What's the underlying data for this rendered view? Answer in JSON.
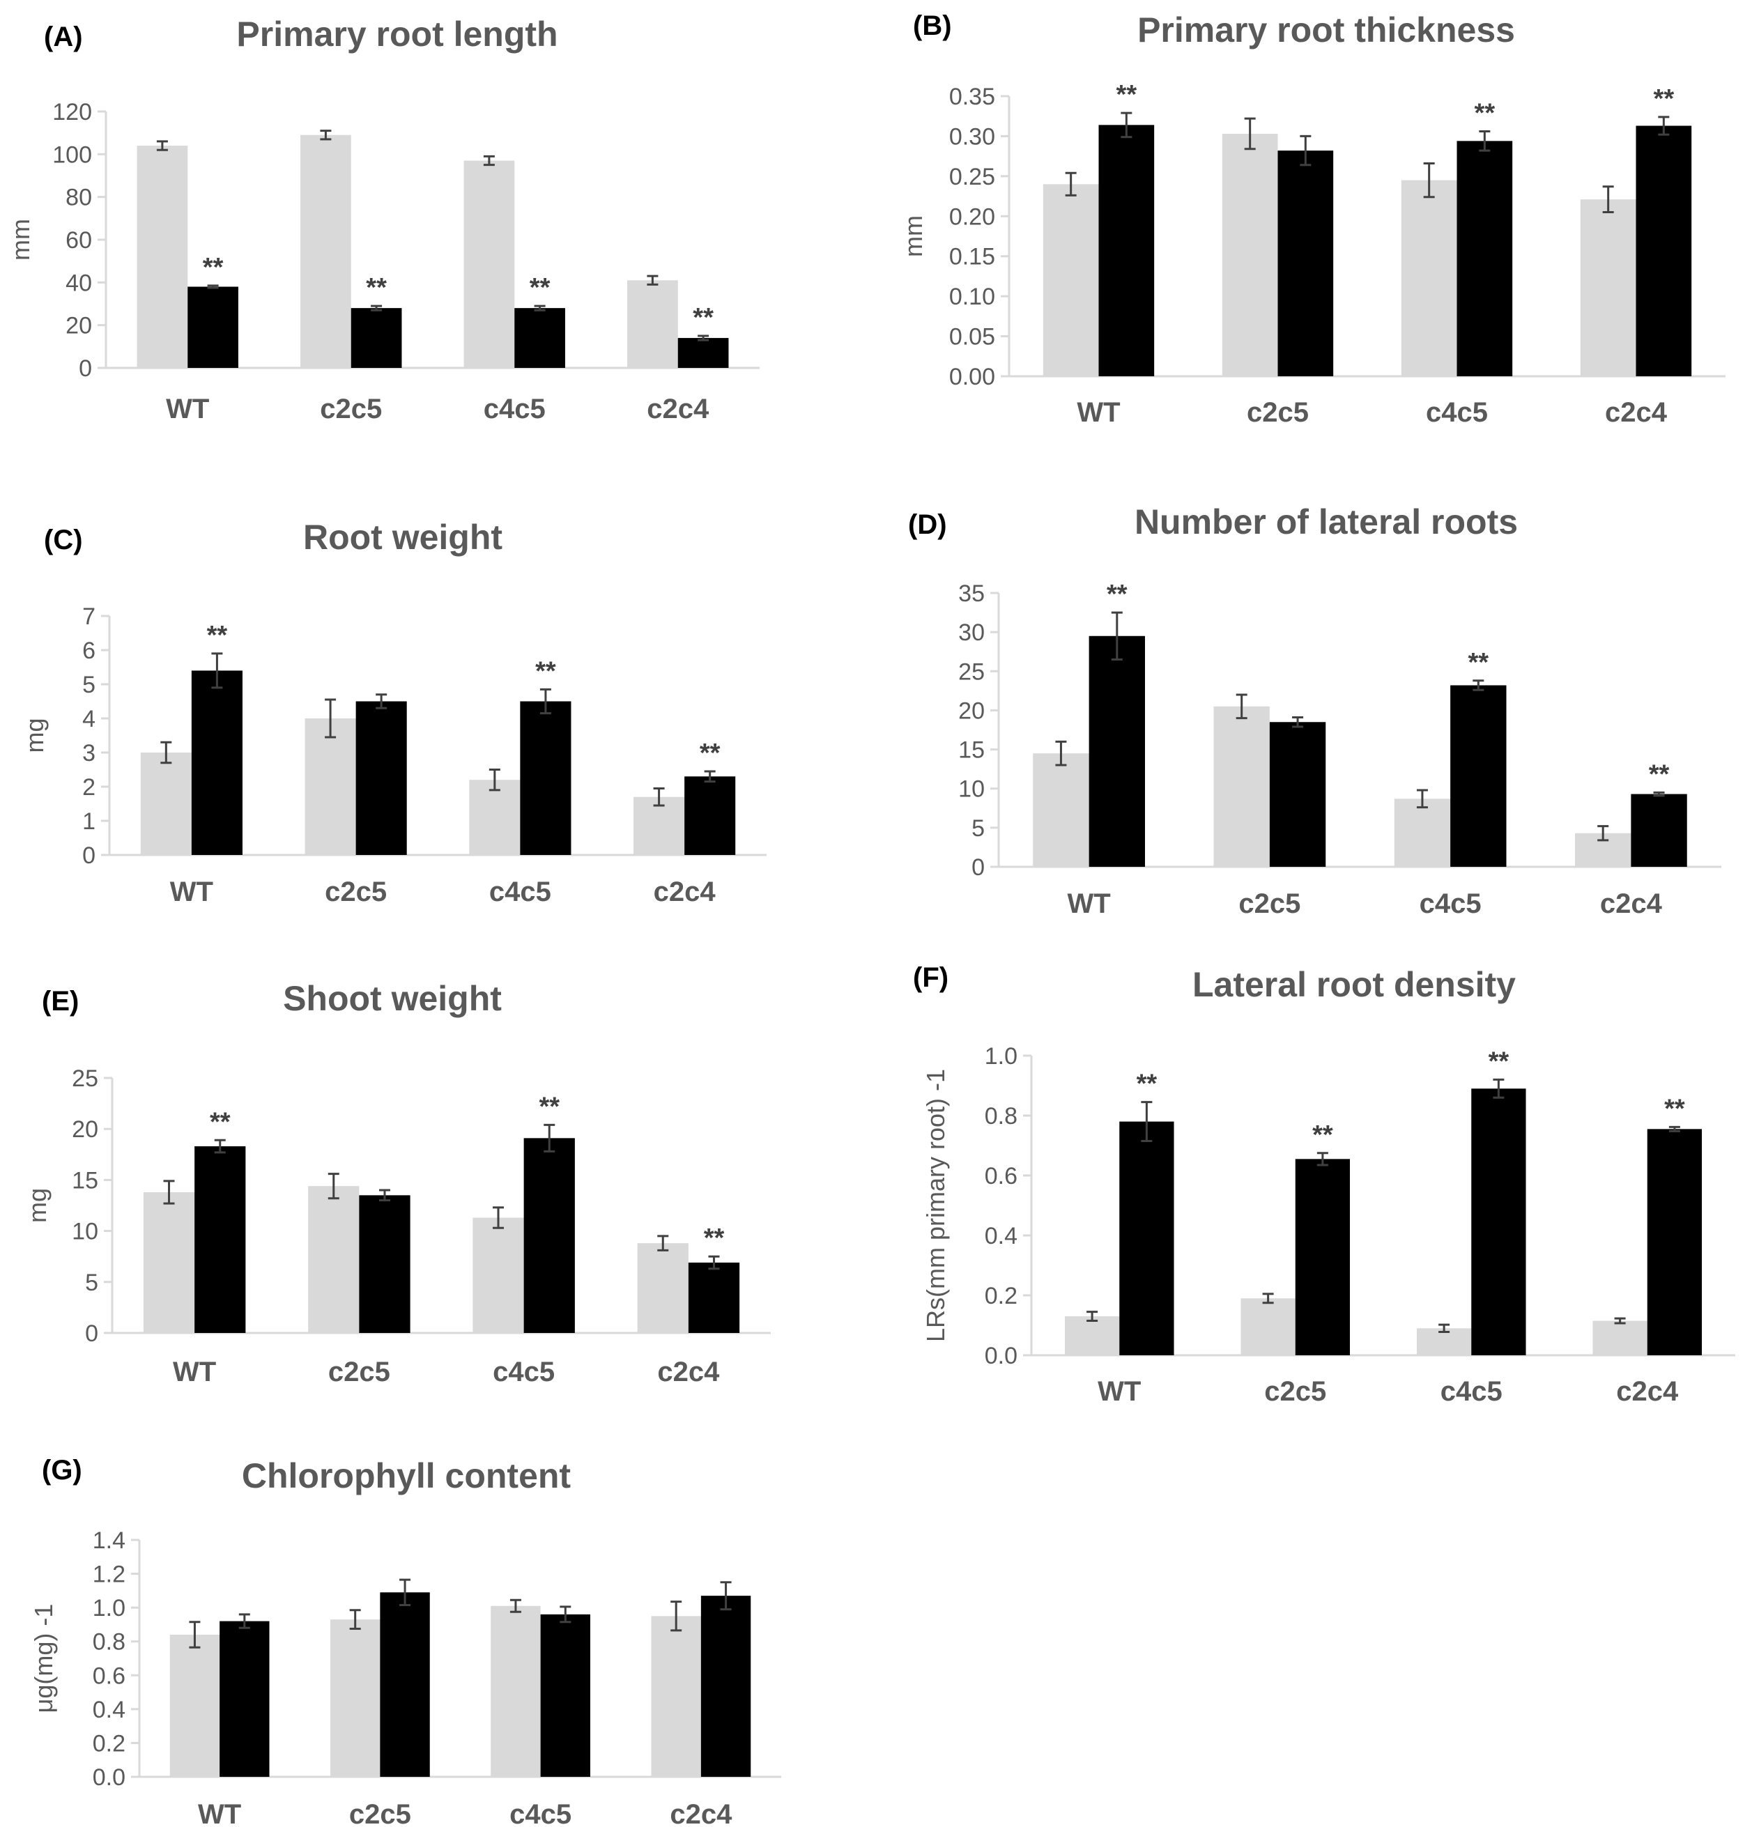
{
  "colors": {
    "light": "#d9d9d9",
    "dark": "#000000",
    "axis": "#d9d9d9",
    "text": "#595959"
  },
  "chart_data": [
    {
      "letter": "(A)",
      "title": "Primary root length",
      "type": "bar",
      "ylabel": "mm",
      "ylim": [
        0,
        120
      ],
      "ystep": 20,
      "ydecimals": 0,
      "categories": [
        "WT",
        "c2c5",
        "c4c5",
        "c2c4"
      ],
      "series": [
        {
          "name": "light",
          "values": [
            104,
            109,
            97,
            41
          ],
          "errors": [
            2,
            2,
            2,
            2
          ]
        },
        {
          "name": "dark",
          "values": [
            38,
            28,
            28,
            14
          ],
          "errors": [
            0.5,
            1,
            1,
            1
          ]
        }
      ],
      "significance": [
        "**",
        "**",
        "**",
        "**"
      ]
    },
    {
      "letter": "(B)",
      "title": "Primary root thickness",
      "type": "bar",
      "ylabel": "mm",
      "ylim": [
        0,
        0.35
      ],
      "ystep": 0.05,
      "ydecimals": 2,
      "categories": [
        "WT",
        "c2c5",
        "c4c5",
        "c2c4"
      ],
      "series": [
        {
          "name": "light",
          "values": [
            0.24,
            0.303,
            0.245,
            0.221
          ],
          "errors": [
            0.014,
            0.019,
            0.021,
            0.016
          ]
        },
        {
          "name": "dark",
          "values": [
            0.314,
            0.282,
            0.294,
            0.313
          ],
          "errors": [
            0.015,
            0.018,
            0.012,
            0.011
          ]
        }
      ],
      "significance": [
        "**",
        "",
        "**",
        "**"
      ]
    },
    {
      "letter": "(C)",
      "title": "Root weight",
      "type": "bar",
      "ylabel": "mg",
      "ylim": [
        0,
        7
      ],
      "ystep": 1,
      "ydecimals": 0,
      "categories": [
        "WT",
        "c2c5",
        "c4c5",
        "c2c4"
      ],
      "series": [
        {
          "name": "light",
          "values": [
            3.0,
            4.0,
            2.2,
            1.7
          ],
          "errors": [
            0.3,
            0.55,
            0.3,
            0.25
          ]
        },
        {
          "name": "dark",
          "values": [
            5.4,
            4.5,
            4.5,
            2.3
          ],
          "errors": [
            0.5,
            0.2,
            0.35,
            0.15
          ]
        }
      ],
      "significance": [
        "**",
        "",
        "**",
        "**"
      ]
    },
    {
      "letter": "(D)",
      "title": "Number of lateral roots",
      "type": "bar",
      "ylabel": "",
      "ylim": [
        0,
        35
      ],
      "ystep": 5,
      "ydecimals": 0,
      "categories": [
        "WT",
        "c2c5",
        "c4c5",
        "c2c4"
      ],
      "series": [
        {
          "name": "light",
          "values": [
            14.5,
            20.5,
            8.7,
            4.3
          ],
          "errors": [
            1.5,
            1.5,
            1.1,
            0.9
          ]
        },
        {
          "name": "dark",
          "values": [
            29.5,
            18.5,
            23.2,
            9.3
          ],
          "errors": [
            3.0,
            0.6,
            0.6,
            0.2
          ]
        }
      ],
      "significance": [
        "**",
        "",
        "**",
        "**"
      ]
    },
    {
      "letter": "(E)",
      "title": "Shoot weight",
      "type": "bar",
      "ylabel": "mg",
      "ylim": [
        0,
        25
      ],
      "ystep": 5,
      "ydecimals": 0,
      "categories": [
        "WT",
        "c2c5",
        "c4c5",
        "c2c4"
      ],
      "series": [
        {
          "name": "light",
          "values": [
            13.8,
            14.4,
            11.3,
            8.8
          ],
          "errors": [
            1.1,
            1.2,
            1.0,
            0.7
          ]
        },
        {
          "name": "dark",
          "values": [
            18.3,
            13.5,
            19.1,
            6.9
          ],
          "errors": [
            0.6,
            0.5,
            1.3,
            0.6
          ]
        }
      ],
      "significance": [
        "**",
        "",
        "**",
        "**"
      ]
    },
    {
      "letter": "(F)",
      "title": "Lateral root density",
      "type": "bar",
      "ylabel": "LRs(mm primary root) -1",
      "ylim": [
        0,
        1.0
      ],
      "ystep": 0.2,
      "ydecimals": 1,
      "categories": [
        "WT",
        "c2c5",
        "c4c5",
        "c2c4"
      ],
      "series": [
        {
          "name": "light",
          "values": [
            0.13,
            0.19,
            0.09,
            0.115
          ],
          "errors": [
            0.015,
            0.015,
            0.012,
            0.008
          ]
        },
        {
          "name": "dark",
          "values": [
            0.78,
            0.655,
            0.89,
            0.755
          ],
          "errors": [
            0.065,
            0.02,
            0.03,
            0.007
          ]
        }
      ],
      "significance": [
        "**",
        "**",
        "**",
        "**"
      ]
    },
    {
      "letter": "(G)",
      "title": "Chlorophyll content",
      "type": "bar",
      "ylabel": "μg(mg) -1",
      "ylim": [
        0,
        1.4
      ],
      "ystep": 0.2,
      "ydecimals": 1,
      "categories": [
        "WT",
        "c2c5",
        "c4c5",
        "c2c4"
      ],
      "series": [
        {
          "name": "light",
          "values": [
            0.84,
            0.93,
            1.01,
            0.95
          ],
          "errors": [
            0.075,
            0.055,
            0.035,
            0.085
          ]
        },
        {
          "name": "dark",
          "values": [
            0.92,
            1.09,
            0.96,
            1.07
          ],
          "errors": [
            0.04,
            0.075,
            0.045,
            0.08
          ]
        }
      ],
      "significance": [
        "",
        "",
        "",
        ""
      ]
    }
  ]
}
